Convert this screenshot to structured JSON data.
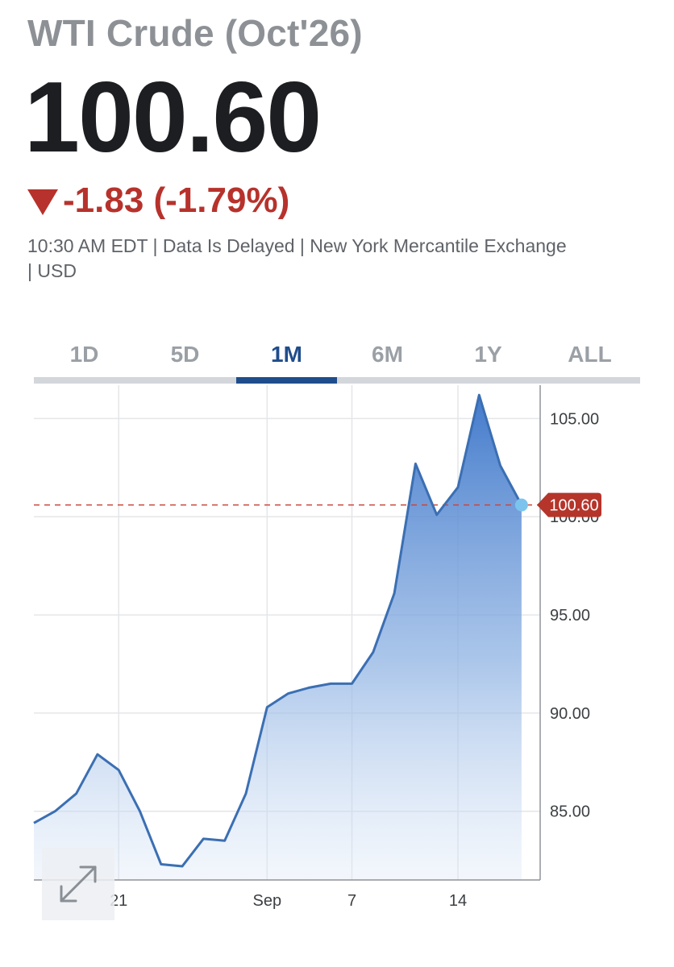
{
  "header": {
    "title": "WTI Crude (Oct'26)",
    "price": "100.60",
    "change": "-1.83 (-1.79%)",
    "meta_line1": "10:30 AM EDT | Data Is Delayed | New York Mercantile Exchange",
    "meta_line2": "| USD",
    "direction_icon": "triangle-down-icon",
    "change_color": "#b7322c"
  },
  "tabs": {
    "items": [
      "1D",
      "5D",
      "1M",
      "6M",
      "1Y",
      "ALL"
    ],
    "active": "1M",
    "active_color": "#1f4d8c"
  },
  "expand": {
    "icon": "expand-arrows-icon"
  },
  "chart_data": {
    "type": "area",
    "x_ticks": [
      {
        "i": 4,
        "label": "21"
      },
      {
        "i": 11,
        "label": "Sep"
      },
      {
        "i": 15,
        "label": "7"
      },
      {
        "i": 20,
        "label": "14"
      }
    ],
    "values": [
      84.4,
      85.0,
      85.9,
      87.9,
      87.1,
      85.0,
      82.3,
      82.2,
      83.6,
      83.5,
      85.9,
      90.3,
      91.0,
      91.3,
      91.5,
      91.5,
      93.1,
      96.1,
      102.7,
      100.1,
      101.5,
      106.2,
      102.6,
      100.6
    ],
    "y_ticks": [
      85.0,
      90.0,
      95.0,
      100.0,
      105.0
    ],
    "y_tick_labels": [
      "85.00",
      "90.00",
      "95.00",
      "100.00",
      "105.00"
    ],
    "ylim": [
      81.5,
      106.7
    ],
    "last_value_label": "100.60",
    "line_color": "#3b6fb3",
    "fill_top_color": "#3a74c9",
    "marker_color": "#7cc4ee",
    "ref_line_color": "#c9463d",
    "grid": true
  }
}
